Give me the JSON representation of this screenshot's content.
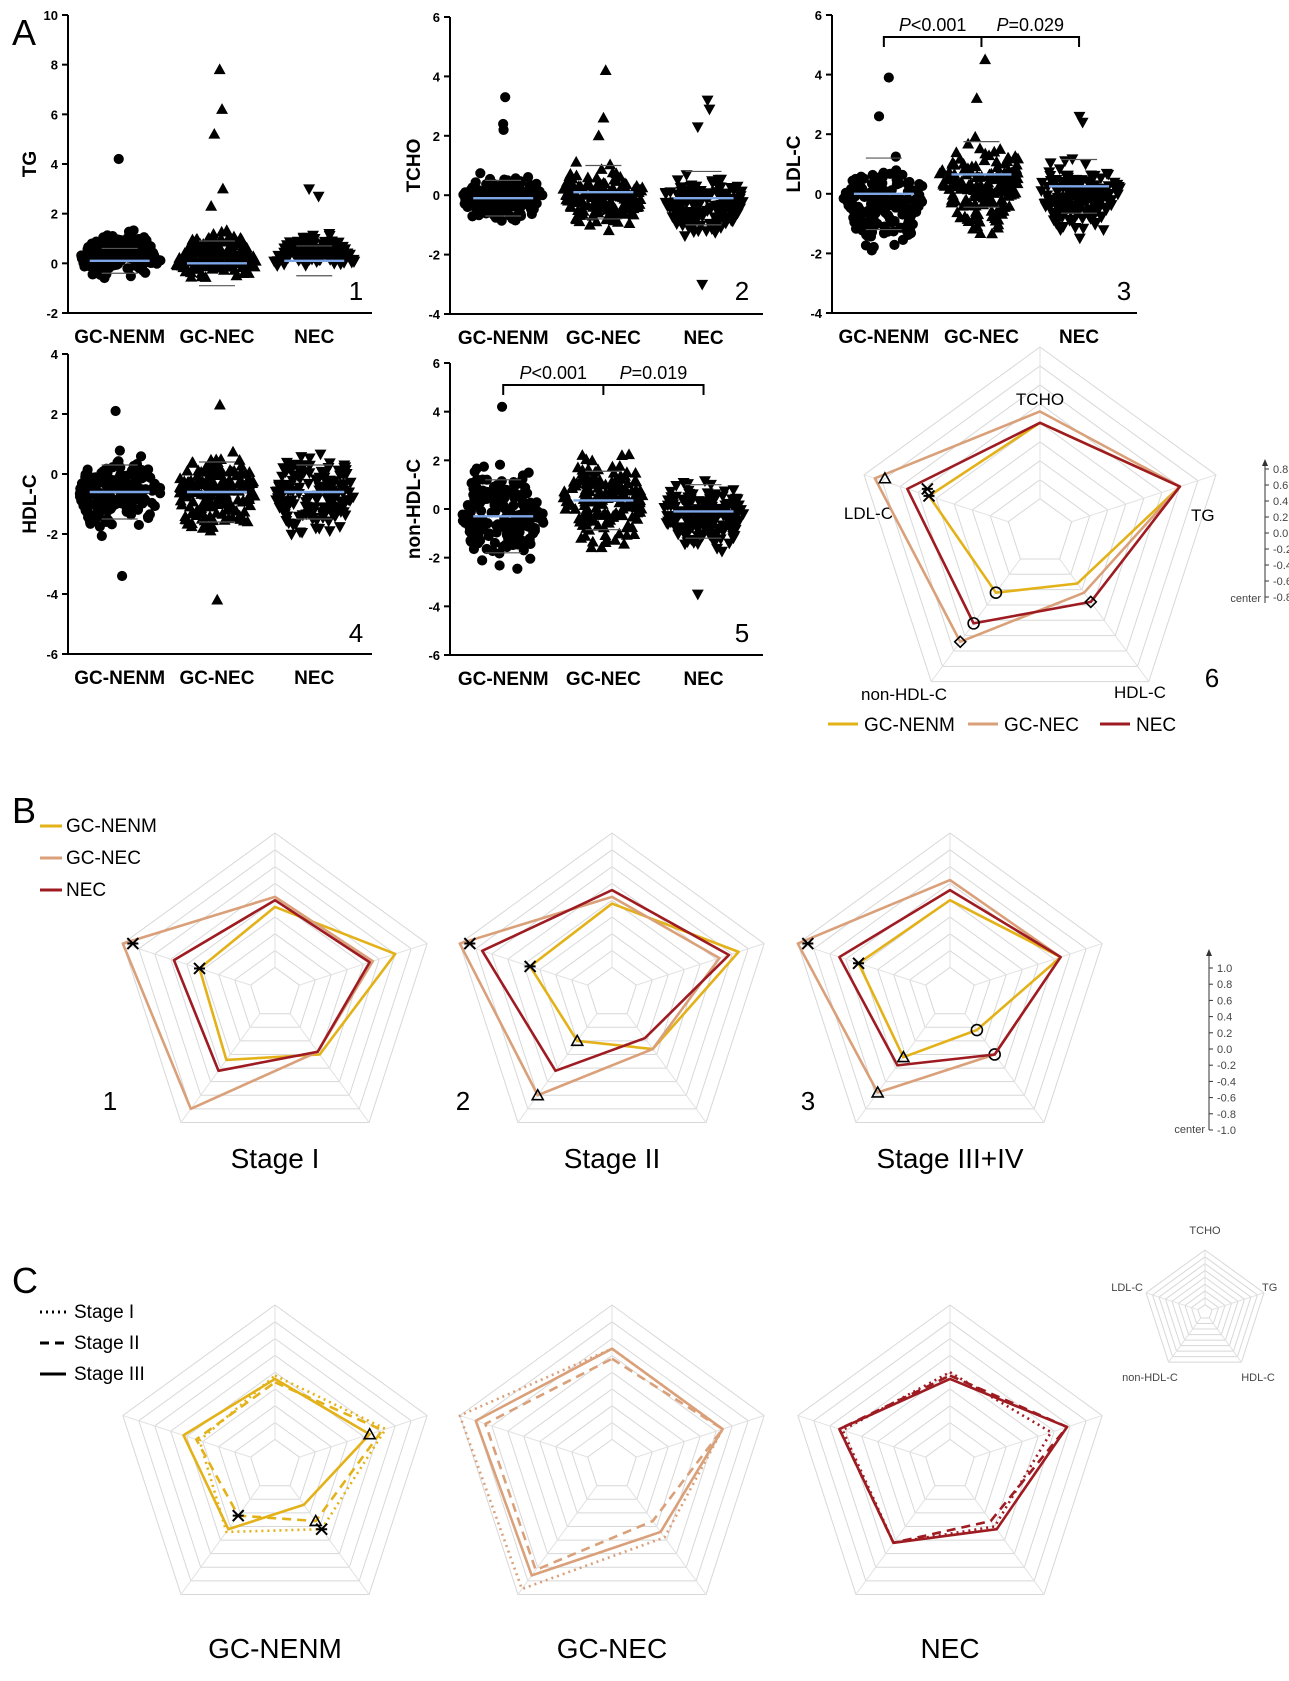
{
  "figure": {
    "sections": [
      "A",
      "B",
      "C"
    ],
    "groups": [
      "GC-NENM",
      "GC-NEC",
      "NEC"
    ],
    "colors": {
      "GC-NENM": "#e3b118",
      "GC-NEC": "#d9a07a",
      "NEC": "#9e1b22",
      "mean_line": "#7da6e6"
    }
  },
  "chart_data": [
    {
      "type": "scatter",
      "panel": "1",
      "ylabel": "TG",
      "ylim": [
        -2,
        10
      ],
      "yticks": [
        "10",
        "8",
        "6",
        "4",
        "2",
        "0",
        "-2"
      ],
      "categories": [
        "GC-NENM",
        "GC-NEC",
        "NEC"
      ],
      "marker": [
        "circle",
        "triangle",
        "triangle-down"
      ],
      "spread": [
        [
          -1.1,
          2.3
        ],
        [
          -1.1,
          2.0
        ],
        [
          -0.6,
          1.8
        ]
      ],
      "outliers": [
        [
          4.2
        ],
        [
          7.8,
          6.2,
          5.2,
          3.0,
          2.3
        ],
        [
          3.0,
          2.7
        ]
      ],
      "means": [
        0.1,
        0.0,
        0.1
      ],
      "sd": [
        0.5,
        0.9,
        0.6
      ],
      "comparisons": []
    },
    {
      "type": "scatter",
      "panel": "2",
      "ylabel": "TCHO",
      "ylim": [
        -4,
        6
      ],
      "yticks": [
        "6",
        "4",
        "2",
        "0",
        "-2",
        "-4"
      ],
      "categories": [
        "GC-NENM",
        "GC-NEC",
        "NEC"
      ],
      "marker": [
        "circle",
        "triangle",
        "triangle-down"
      ],
      "spread": [
        [
          -1.6,
          1.4
        ],
        [
          -2.2,
          1.8
        ],
        [
          -2.1,
          1.4
        ]
      ],
      "outliers": [
        [
          3.3,
          2.4,
          2.2
        ],
        [
          4.2,
          2.6,
          2.0
        ],
        [
          3.2,
          2.9,
          2.3,
          -3.0
        ]
      ],
      "means": [
        -0.1,
        0.1,
        -0.1
      ],
      "sd": [
        0.6,
        0.9,
        0.9
      ],
      "comparisons": []
    },
    {
      "type": "scatter",
      "panel": "3",
      "ylabel": "LDL-C",
      "ylim": [
        -4,
        6
      ],
      "yticks": [
        "6",
        "4",
        "2",
        "0",
        "-2",
        "-4"
      ],
      "categories": [
        "GC-NENM",
        "GC-NEC",
        "NEC"
      ],
      "marker": [
        "circle",
        "triangle",
        "triangle-down"
      ],
      "spread": [
        [
          -3.3,
          2.1
        ],
        [
          -2.7,
          2.6
        ],
        [
          -2.6,
          2.0
        ]
      ],
      "outliers": [
        [
          3.9,
          2.6
        ],
        [
          4.5,
          3.2
        ],
        [
          2.6,
          2.4
        ]
      ],
      "means": [
        0.0,
        0.65,
        0.25
      ],
      "sd": [
        1.2,
        1.1,
        0.9
      ],
      "comparisons": [
        {
          "from": 0,
          "to": 1,
          "P": "P",
          "op": "<0.001"
        },
        {
          "from": 1,
          "to": 2,
          "P": "P",
          "op": "=0.029"
        }
      ]
    },
    {
      "type": "scatter",
      "panel": "4",
      "ylabel": "HDL-C",
      "ylim": [
        -6,
        4
      ],
      "yticks": [
        "4",
        "2",
        "0",
        "-2",
        "-4",
        "-6"
      ],
      "categories": [
        "GC-NENM",
        "GC-NEC",
        "NEC"
      ],
      "marker": [
        "circle",
        "triangle",
        "triangle-down"
      ],
      "spread": [
        [
          -3.0,
          1.6
        ],
        [
          -3.0,
          1.8
        ],
        [
          -3.0,
          1.5
        ]
      ],
      "outliers": [
        [
          2.1,
          -3.4
        ],
        [
          2.3,
          -4.2
        ],
        []
      ],
      "means": [
        -0.6,
        -0.6,
        -0.6
      ],
      "sd": [
        0.9,
        1.0,
        0.9
      ],
      "comparisons": []
    },
    {
      "type": "scatter",
      "panel": "5",
      "ylabel": "non-HDL-C",
      "ylim": [
        -6,
        6
      ],
      "yticks": [
        "6",
        "4",
        "2",
        "0",
        "-2",
        "-4",
        "-6"
      ],
      "categories": [
        "GC-NENM",
        "GC-NEC",
        "NEC"
      ],
      "marker": [
        "circle",
        "triangle",
        "triangle-down"
      ],
      "spread": [
        [
          -3.9,
          3.5
        ],
        [
          -3.1,
          3.8
        ],
        [
          -2.9,
          2.2
        ]
      ],
      "outliers": [
        [
          4.2
        ],
        [],
        [
          -3.5
        ]
      ],
      "means": [
        -0.3,
        0.35,
        -0.1
      ],
      "sd": [
        1.5,
        1.2,
        1.1
      ],
      "comparisons": [
        {
          "from": 0,
          "to": 1,
          "P": "P",
          "op": "<0.001"
        },
        {
          "from": 1,
          "to": 2,
          "P": "P",
          "op": "=0.019"
        }
      ]
    },
    {
      "type": "radar",
      "panel": "6",
      "axes": [
        "TCHO",
        "TG",
        "HDL-C",
        "non-HDL-C",
        "LDL-C"
      ],
      "range": [
        -1.0,
        1.0
      ],
      "scale_ticks": [
        "0.8",
        "0.6",
        "0.4",
        "0.2",
        "0.0",
        "-0.2",
        "-0.4",
        "-0.6",
        "-0.8"
      ],
      "scale_center_label": "center",
      "series": [
        {
          "name": "GC-NENM",
          "values": [
            0.0,
            0.5,
            -0.6,
            -0.45,
            0.1
          ],
          "markers": [
            null,
            null,
            null,
            "circle",
            "x"
          ]
        },
        {
          "name": "GC-NEC",
          "values": [
            0.15,
            0.5,
            -0.45,
            0.35,
            0.85
          ],
          "markers": [
            null,
            null,
            null,
            "diamond",
            "triangle"
          ]
        },
        {
          "name": "NEC",
          "values": [
            0.0,
            0.5,
            -0.3,
            0.05,
            0.4
          ],
          "markers": [
            null,
            null,
            "diamond",
            "circle",
            "x"
          ]
        }
      ]
    },
    {
      "type": "radar",
      "panel": "B1",
      "title": "Stage I",
      "axes": [
        "TCHO",
        "TG",
        "HDL-C",
        "non-HDL-C",
        "LDL-C"
      ],
      "range": [
        -1.0,
        1.0
      ],
      "scale_ticks": [
        "1.0",
        "0.8",
        "0.6",
        "0.4",
        "0.2",
        "0.0",
        "-0.2",
        "-0.4",
        "-0.6",
        "-0.8",
        "-1.0"
      ],
      "scale_center_label": "center",
      "series": [
        {
          "name": "GC-NENM",
          "values": [
            -0.1,
            0.5,
            -0.25,
            -0.15,
            -0.2
          ],
          "markers": [
            null,
            null,
            null,
            null,
            "x"
          ]
        },
        {
          "name": "GC-NEC",
          "values": [
            0.05,
            0.15,
            -0.3,
            0.75,
            1.0
          ],
          "markers": [
            null,
            null,
            null,
            null,
            "x"
          ]
        },
        {
          "name": "NEC",
          "values": [
            0.0,
            0.1,
            -0.3,
            0.05,
            0.2
          ],
          "markers": [
            null,
            null,
            null,
            null,
            null
          ]
        }
      ]
    },
    {
      "type": "radar",
      "panel": "B2",
      "title": "Stage II",
      "axes": [
        "TCHO",
        "TG",
        "HDL-C",
        "non-HDL-C",
        "LDL-C"
      ],
      "range": [
        -1.0,
        1.0
      ],
      "scale_ticks": [
        "1.0",
        "0.8",
        "0.6",
        "0.4",
        "0.2",
        "0.0",
        "-0.2",
        "-0.4",
        "-0.6",
        "-0.8",
        "-1.0"
      ],
      "scale_center_label": "center",
      "series": [
        {
          "name": "GC-NENM",
          "values": [
            -0.05,
            0.6,
            -0.35,
            -0.5,
            -0.1
          ],
          "markers": [
            null,
            null,
            null,
            "triangle",
            "x"
          ]
        },
        {
          "name": "GC-NEC",
          "values": [
            0.05,
            0.3,
            -0.35,
            0.5,
            1.0
          ],
          "markers": [
            null,
            null,
            null,
            "triangle",
            "x"
          ]
        },
        {
          "name": "NEC",
          "values": [
            0.15,
            0.45,
            -0.55,
            0.05,
            0.65
          ],
          "markers": [
            null,
            null,
            null,
            null,
            null
          ]
        }
      ]
    },
    {
      "type": "radar",
      "panel": "B3",
      "title": "Stage III+IV",
      "axes": [
        "TCHO",
        "TG",
        "HDL-C",
        "non-HDL-C",
        "LDL-C"
      ],
      "range": [
        -1.0,
        1.0
      ],
      "scale_ticks": [
        "1.0",
        "0.8",
        "0.6",
        "0.4",
        "0.2",
        "0.0",
        "-0.2",
        "-0.4",
        "-0.6",
        "-0.8",
        "-1.0"
      ],
      "scale_center_label": "center",
      "series": [
        {
          "name": "GC-NENM",
          "values": [
            0.0,
            0.35,
            -0.7,
            -0.2,
            0.05
          ],
          "markers": [
            null,
            null,
            "circle",
            "triangle",
            "x"
          ]
        },
        {
          "name": "GC-NEC",
          "values": [
            0.3,
            0.35,
            -0.25,
            0.45,
            1.0
          ],
          "markers": [
            null,
            null,
            "circle",
            "triangle",
            "x"
          ]
        },
        {
          "name": "NEC",
          "values": [
            0.15,
            0.35,
            -0.25,
            -0.05,
            0.35
          ],
          "markers": [
            null,
            null,
            null,
            null,
            null
          ]
        }
      ]
    },
    {
      "type": "radar",
      "panel": "C1",
      "title": "GC-NENM",
      "axes": [
        "TCHO",
        "TG",
        "HDL-C",
        "non-HDL-C",
        "LDL-C"
      ],
      "range": [
        -1.0,
        1.0
      ],
      "color": "GC-NENM",
      "series": [
        {
          "name": "Stage I",
          "style": "dotted",
          "values": [
            -0.05,
            0.35,
            -0.2,
            -0.15,
            -0.2
          ],
          "markers": [
            null,
            null,
            "x",
            null,
            null
          ]
        },
        {
          "name": "Stage II",
          "style": "dashed",
          "values": [
            -0.15,
            0.3,
            -0.35,
            -0.45,
            -0.15
          ],
          "markers": [
            null,
            null,
            "triangle",
            "x",
            null
          ]
        },
        {
          "name": "Stage III",
          "style": "solid",
          "values": [
            -0.1,
            0.1,
            -0.65,
            -0.2,
            0.05
          ],
          "markers": [
            null,
            "triangle",
            null,
            null,
            null
          ]
        }
      ]
    },
    {
      "type": "radar",
      "panel": "C2",
      "title": "GC-NEC",
      "axes": [
        "TCHO",
        "TG",
        "HDL-C",
        "non-HDL-C",
        "LDL-C"
      ],
      "range": [
        -1.0,
        1.0
      ],
      "color": "GC-NEC",
      "series": [
        {
          "name": "Stage I",
          "style": "dotted",
          "values": [
            0.35,
            0.35,
            -0.05,
            0.9,
            1.0
          ],
          "markers": [
            null,
            null,
            null,
            null,
            null
          ]
        },
        {
          "name": "Stage II",
          "style": "dashed",
          "values": [
            0.2,
            0.35,
            -0.35,
            0.55,
            0.6
          ],
          "markers": [
            null,
            null,
            null,
            null,
            null
          ]
        },
        {
          "name": "Stage III",
          "style": "solid",
          "values": [
            0.35,
            0.35,
            -0.15,
            0.65,
            0.75
          ],
          "markers": [
            null,
            null,
            null,
            null,
            null
          ]
        }
      ]
    },
    {
      "type": "radar",
      "panel": "C3",
      "title": "NEC",
      "axes": [
        "TCHO",
        "TG",
        "HDL-C",
        "non-HDL-C",
        "LDL-C"
      ],
      "range": [
        -1.0,
        1.0
      ],
      "color": "NEC",
      "series": [
        {
          "name": "Stage I",
          "style": "dotted",
          "values": [
            0.0,
            0.2,
            -0.25,
            0.05,
            0.3
          ],
          "markers": [
            null,
            null,
            null,
            null,
            null
          ]
        },
        {
          "name": "Stage II",
          "style": "dashed",
          "values": [
            -0.05,
            0.45,
            -0.35,
            0.05,
            0.35
          ],
          "markers": [
            null,
            null,
            null,
            null,
            null
          ]
        },
        {
          "name": "Stage III",
          "style": "solid",
          "values": [
            -0.1,
            0.45,
            -0.2,
            0.05,
            0.35
          ],
          "markers": [
            null,
            null,
            null,
            null,
            null
          ]
        }
      ]
    },
    {
      "type": "radar",
      "panel": "C-key",
      "axes": [
        "TCHO",
        "TG",
        "HDL-C",
        "non-HDL-C",
        "LDL-C"
      ],
      "range": [
        -1.0,
        1.0
      ],
      "series": []
    }
  ],
  "legends": {
    "A6": [
      "GC-NENM",
      "GC-NEC",
      "NEC"
    ],
    "B": [
      "GC-NENM",
      "GC-NEC",
      "NEC"
    ],
    "C": [
      "Stage I",
      "Stage II",
      "Stage III"
    ]
  }
}
